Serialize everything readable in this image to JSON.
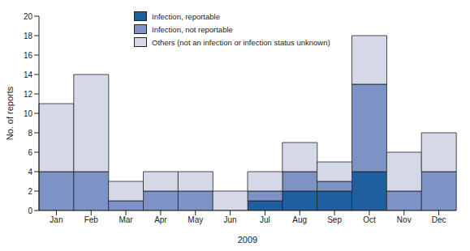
{
  "chart_data": {
    "type": "bar",
    "stacked": true,
    "x_label": "2009",
    "y_label": "No. of reports",
    "categories": [
      "Jan",
      "Feb",
      "Mar",
      "Apr",
      "May",
      "Jun",
      "Jul",
      "Aug",
      "Sep",
      "Oct",
      "Nov",
      "Dec"
    ],
    "series": [
      {
        "name": "Infection, reportable",
        "color": "#1f5f9f",
        "values": [
          0,
          0,
          0,
          0,
          0,
          0,
          1,
          2,
          2,
          4,
          0,
          0
        ]
      },
      {
        "name": "Infection, not reportable",
        "color": "#7d93c5",
        "values": [
          4,
          4,
          1,
          2,
          2,
          0,
          1,
          2,
          1,
          9,
          2,
          4
        ]
      },
      {
        "name": "Others (not an infection or infection status unknown)",
        "color": "#d5d8e7",
        "values": [
          7,
          10,
          2,
          2,
          2,
          2,
          2,
          3,
          2,
          5,
          4,
          4
        ]
      }
    ],
    "ylim": [
      0,
      20
    ],
    "yticks": [
      0,
      2,
      4,
      6,
      8,
      10,
      12,
      14,
      16,
      18,
      20
    ],
    "grid": false,
    "legend": "upper left"
  }
}
